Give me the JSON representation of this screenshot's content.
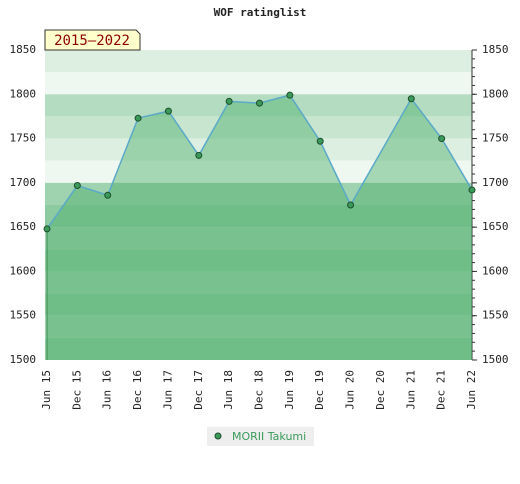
{
  "chart_data": {
    "type": "line",
    "title": "WOF ratinglist",
    "period_label": "2015–2022",
    "categories": [
      "Jun 15",
      "Dec 15",
      "Jun 16",
      "Dec 16",
      "Jun 17",
      "Dec 17",
      "Jun 18",
      "Dec 18",
      "Jun 19",
      "Dec 19",
      "Jun 20",
      "Dec 20",
      "Jun 21",
      "Dec 21",
      "Jun 22"
    ],
    "series": [
      {
        "name": "MORII Takumi",
        "color": "#5aa9c9",
        "marker_color": "#3a9a5a",
        "values": [
          1648,
          1697,
          1686,
          1773,
          1781,
          1731,
          1792,
          1790,
          1799,
          1747,
          1675,
          null,
          1795,
          1750,
          1692
        ]
      }
    ],
    "connect_nulls": true,
    "ylim": [
      1500,
      1850
    ],
    "yticks": [
      1500,
      1550,
      1600,
      1650,
      1700,
      1750,
      1800,
      1850
    ]
  }
}
